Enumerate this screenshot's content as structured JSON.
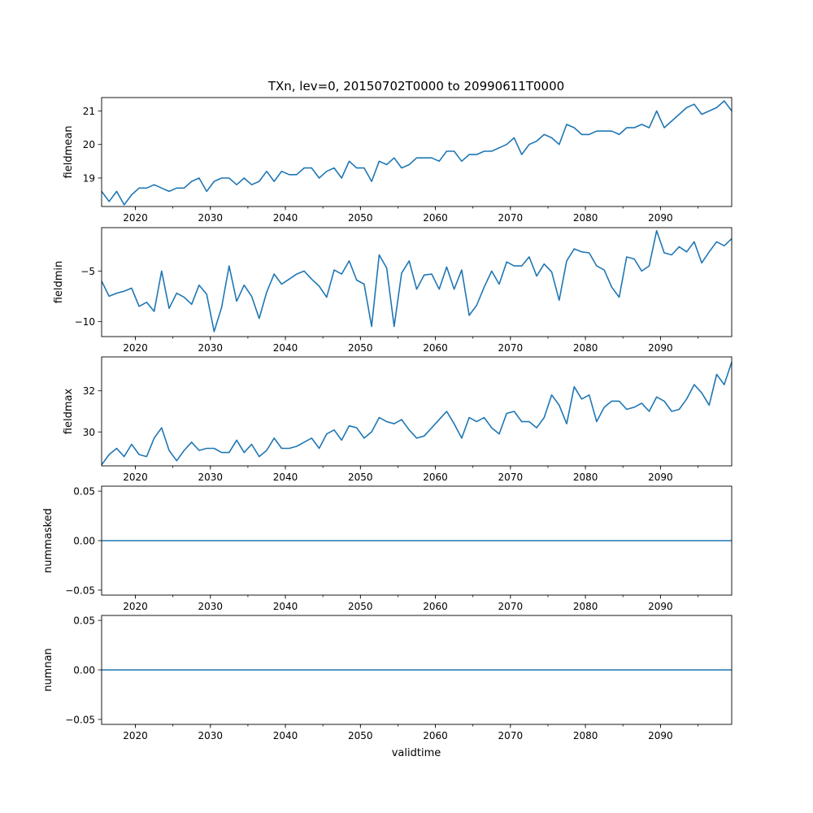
{
  "figure": {
    "title": "TXn, lev=0, 20150702T0000 to 20990611T0000",
    "xlabel": "validtime",
    "line_color": "#1f77b4"
  },
  "chart_data": [
    {
      "type": "line",
      "ylabel": "fieldmean",
      "x_start": 2015.5,
      "x_step": 1,
      "xlim": [
        2015.5,
        2099.5
      ],
      "ylim": [
        18.15,
        21.4
      ],
      "xticks": [
        2020,
        2030,
        2040,
        2050,
        2060,
        2070,
        2080,
        2090
      ],
      "xtick_labels": [
        "2020",
        "2030",
        "2040",
        "2050",
        "2060",
        "2070",
        "2080",
        "2090"
      ],
      "yticks": [
        19,
        20,
        21
      ],
      "ytick_labels": [
        "19",
        "20",
        "21"
      ],
      "values": [
        18.6,
        18.3,
        18.6,
        18.2,
        18.5,
        18.7,
        18.7,
        18.8,
        18.7,
        18.6,
        18.7,
        18.7,
        18.9,
        19.0,
        18.6,
        18.9,
        19.0,
        19.0,
        18.8,
        19.0,
        18.8,
        18.9,
        19.2,
        18.9,
        19.2,
        19.1,
        19.1,
        19.3,
        19.3,
        19.0,
        19.2,
        19.3,
        19.0,
        19.5,
        19.3,
        19.3,
        18.9,
        19.5,
        19.4,
        19.6,
        19.3,
        19.4,
        19.6,
        19.6,
        19.6,
        19.5,
        19.8,
        19.8,
        19.5,
        19.7,
        19.7,
        19.8,
        19.8,
        19.9,
        20.0,
        20.2,
        19.7,
        20.0,
        20.1,
        20.3,
        20.2,
        20.0,
        20.6,
        20.5,
        20.3,
        20.3,
        20.4,
        20.4,
        20.4,
        20.3,
        20.5,
        20.5,
        20.6,
        20.5,
        21.0,
        20.5,
        20.7,
        20.9,
        21.1,
        21.2,
        20.9,
        21.0,
        21.1,
        21.3,
        21.0
      ]
    },
    {
      "type": "line",
      "ylabel": "fieldmin",
      "x_start": 2015.5,
      "x_step": 1,
      "xlim": [
        2015.5,
        2099.5
      ],
      "ylim": [
        -11.5,
        -0.7
      ],
      "xticks": [
        2020,
        2030,
        2040,
        2050,
        2060,
        2070,
        2080,
        2090
      ],
      "xtick_labels": [
        "2020",
        "2030",
        "2040",
        "2050",
        "2060",
        "2070",
        "2080",
        "2090"
      ],
      "yticks": [
        -10,
        -5
      ],
      "ytick_labels": [
        "−10",
        "−5"
      ],
      "values": [
        -6.0,
        -7.5,
        -7.2,
        -7.0,
        -6.7,
        -8.5,
        -8.1,
        -9.0,
        -5.0,
        -8.7,
        -7.2,
        -7.6,
        -8.3,
        -6.4,
        -7.3,
        -11.0,
        -8.6,
        -4.5,
        -8.0,
        -6.4,
        -7.5,
        -9.7,
        -7.1,
        -5.3,
        -6.3,
        -5.8,
        -5.3,
        -5.0,
        -5.8,
        -6.5,
        -7.6,
        -4.9,
        -5.3,
        -4.0,
        -5.9,
        -6.3,
        -10.5,
        -3.4,
        -4.7,
        -10.5,
        -5.2,
        -4.0,
        -6.8,
        -5.4,
        -5.3,
        -6.8,
        -4.6,
        -6.8,
        -4.9,
        -9.4,
        -8.4,
        -6.6,
        -5.0,
        -6.3,
        -4.1,
        -4.5,
        -4.5,
        -3.6,
        -5.5,
        -4.3,
        -5.1,
        -7.9,
        -4.0,
        -2.8,
        -3.1,
        -3.2,
        -4.5,
        -4.9,
        -6.6,
        -7.6,
        -3.6,
        -3.8,
        -5.0,
        -4.5,
        -1.0,
        -3.2,
        -3.4,
        -2.6,
        -3.1,
        -2.1,
        -4.2,
        -3.1,
        -2.1,
        -2.5,
        -1.8
      ]
    },
    {
      "type": "line",
      "ylabel": "fieldmax",
      "x_start": 2015.5,
      "x_step": 1,
      "xlim": [
        2015.5,
        2099.5
      ],
      "ylim": [
        28.35,
        33.65
      ],
      "xticks": [
        2020,
        2030,
        2040,
        2050,
        2060,
        2070,
        2080,
        2090
      ],
      "xtick_labels": [
        "2020",
        "2030",
        "2040",
        "2050",
        "2060",
        "2070",
        "2080",
        "2090"
      ],
      "yticks": [
        30,
        32
      ],
      "ytick_labels": [
        "30",
        "32"
      ],
      "values": [
        28.4,
        28.9,
        29.2,
        28.8,
        29.4,
        28.9,
        28.8,
        29.7,
        30.2,
        29.1,
        28.6,
        29.1,
        29.5,
        29.1,
        29.2,
        29.2,
        29.0,
        29.0,
        29.6,
        29.0,
        29.4,
        28.8,
        29.1,
        29.7,
        29.2,
        29.2,
        29.3,
        29.5,
        29.7,
        29.2,
        29.9,
        30.1,
        29.6,
        30.3,
        30.2,
        29.7,
        30.0,
        30.7,
        30.5,
        30.4,
        30.6,
        30.1,
        29.7,
        29.8,
        30.2,
        30.6,
        31.0,
        30.4,
        29.7,
        30.7,
        30.5,
        30.7,
        30.2,
        29.9,
        30.9,
        31.0,
        30.5,
        30.5,
        30.2,
        30.7,
        31.8,
        31.3,
        30.4,
        32.2,
        31.6,
        31.8,
        30.5,
        31.2,
        31.5,
        31.5,
        31.1,
        31.2,
        31.4,
        31.0,
        31.7,
        31.5,
        31.0,
        31.1,
        31.6,
        32.3,
        31.9,
        31.3,
        32.8,
        32.3,
        33.4
      ]
    },
    {
      "type": "line",
      "ylabel": "nummasked",
      "x_start": 2015.5,
      "x_step": 1,
      "xlim": [
        2015.5,
        2099.5
      ],
      "ylim": [
        -0.055,
        0.055
      ],
      "xticks": [
        2020,
        2030,
        2040,
        2050,
        2060,
        2070,
        2080,
        2090
      ],
      "xtick_labels": [
        "2020",
        "2030",
        "2040",
        "2050",
        "2060",
        "2070",
        "2080",
        "2090"
      ],
      "yticks": [
        -0.05,
        0.0,
        0.05
      ],
      "ytick_labels": [
        "−0.05",
        "0.00",
        "0.05"
      ],
      "constant": 0
    },
    {
      "type": "line",
      "ylabel": "numnan",
      "x_start": 2015.5,
      "x_step": 1,
      "xlim": [
        2015.5,
        2099.5
      ],
      "ylim": [
        -0.055,
        0.055
      ],
      "xticks": [
        2020,
        2030,
        2040,
        2050,
        2060,
        2070,
        2080,
        2090
      ],
      "xtick_labels": [
        "2020",
        "2030",
        "2040",
        "2050",
        "2060",
        "2070",
        "2080",
        "2090"
      ],
      "yticks": [
        -0.05,
        0.0,
        0.05
      ],
      "ytick_labels": [
        "−0.05",
        "0.00",
        "0.05"
      ],
      "constant": 0
    }
  ]
}
